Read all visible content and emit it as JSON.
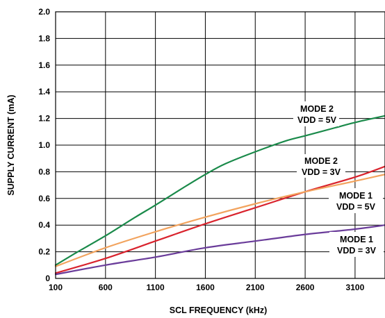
{
  "chart_data": {
    "type": "line",
    "xlabel": "SCL FREQUENCY (kHz)",
    "ylabel": "SUPPLY CURRENT (mA)",
    "xlim": [
      100,
      3400
    ],
    "ylim": [
      0,
      2.0
    ],
    "x_ticks": [
      "100",
      "600",
      "1100",
      "1600",
      "2100",
      "2600",
      "3100"
    ],
    "y_ticks": [
      "0",
      "0.2",
      "0.4",
      "0.6",
      "0.8",
      "1.0",
      "1.2",
      "1.4",
      "1.6",
      "1.8",
      "2.0"
    ],
    "grid": true,
    "series": [
      {
        "label": "MODE 2 VDD = 5V",
        "color": "#1a8a4a",
        "x": [
          100,
          300,
          600,
          900,
          1100,
          1400,
          1600,
          1800,
          2100,
          2400,
          2600,
          2900,
          3100,
          3400
        ],
        "y": [
          0.1,
          0.19,
          0.32,
          0.46,
          0.55,
          0.69,
          0.78,
          0.86,
          0.95,
          1.03,
          1.07,
          1.13,
          1.17,
          1.22
        ]
      },
      {
        "label": "MODE 2 VDD = 3V",
        "color": "#d9232d",
        "x": [
          100,
          600,
          1100,
          1600,
          2100,
          2600,
          3100,
          3400
        ],
        "y": [
          0.04,
          0.15,
          0.28,
          0.41,
          0.53,
          0.65,
          0.76,
          0.84
        ]
      },
      {
        "label": "MODE 1 VDD = 5V",
        "color": "#f2a35e",
        "x": [
          100,
          600,
          1100,
          1600,
          2100,
          2600,
          3100,
          3400
        ],
        "y": [
          0.09,
          0.23,
          0.35,
          0.46,
          0.56,
          0.65,
          0.73,
          0.78
        ]
      },
      {
        "label": "MODE 1 VDD = 3V",
        "color": "#6a3c9a",
        "x": [
          100,
          600,
          1100,
          1600,
          2100,
          2600,
          3100,
          3400
        ],
        "y": [
          0.03,
          0.1,
          0.16,
          0.23,
          0.28,
          0.33,
          0.37,
          0.4
        ]
      }
    ]
  },
  "annotations": [
    {
      "line1": "MODE 2",
      "line2": "VDD = 5V"
    },
    {
      "line1": "MODE 2",
      "line2": "VDD = 3V"
    },
    {
      "line1": "MODE 1",
      "line2": "VDD = 5V"
    },
    {
      "line1": "MODE 1",
      "line2": "VDD = 3V"
    }
  ]
}
